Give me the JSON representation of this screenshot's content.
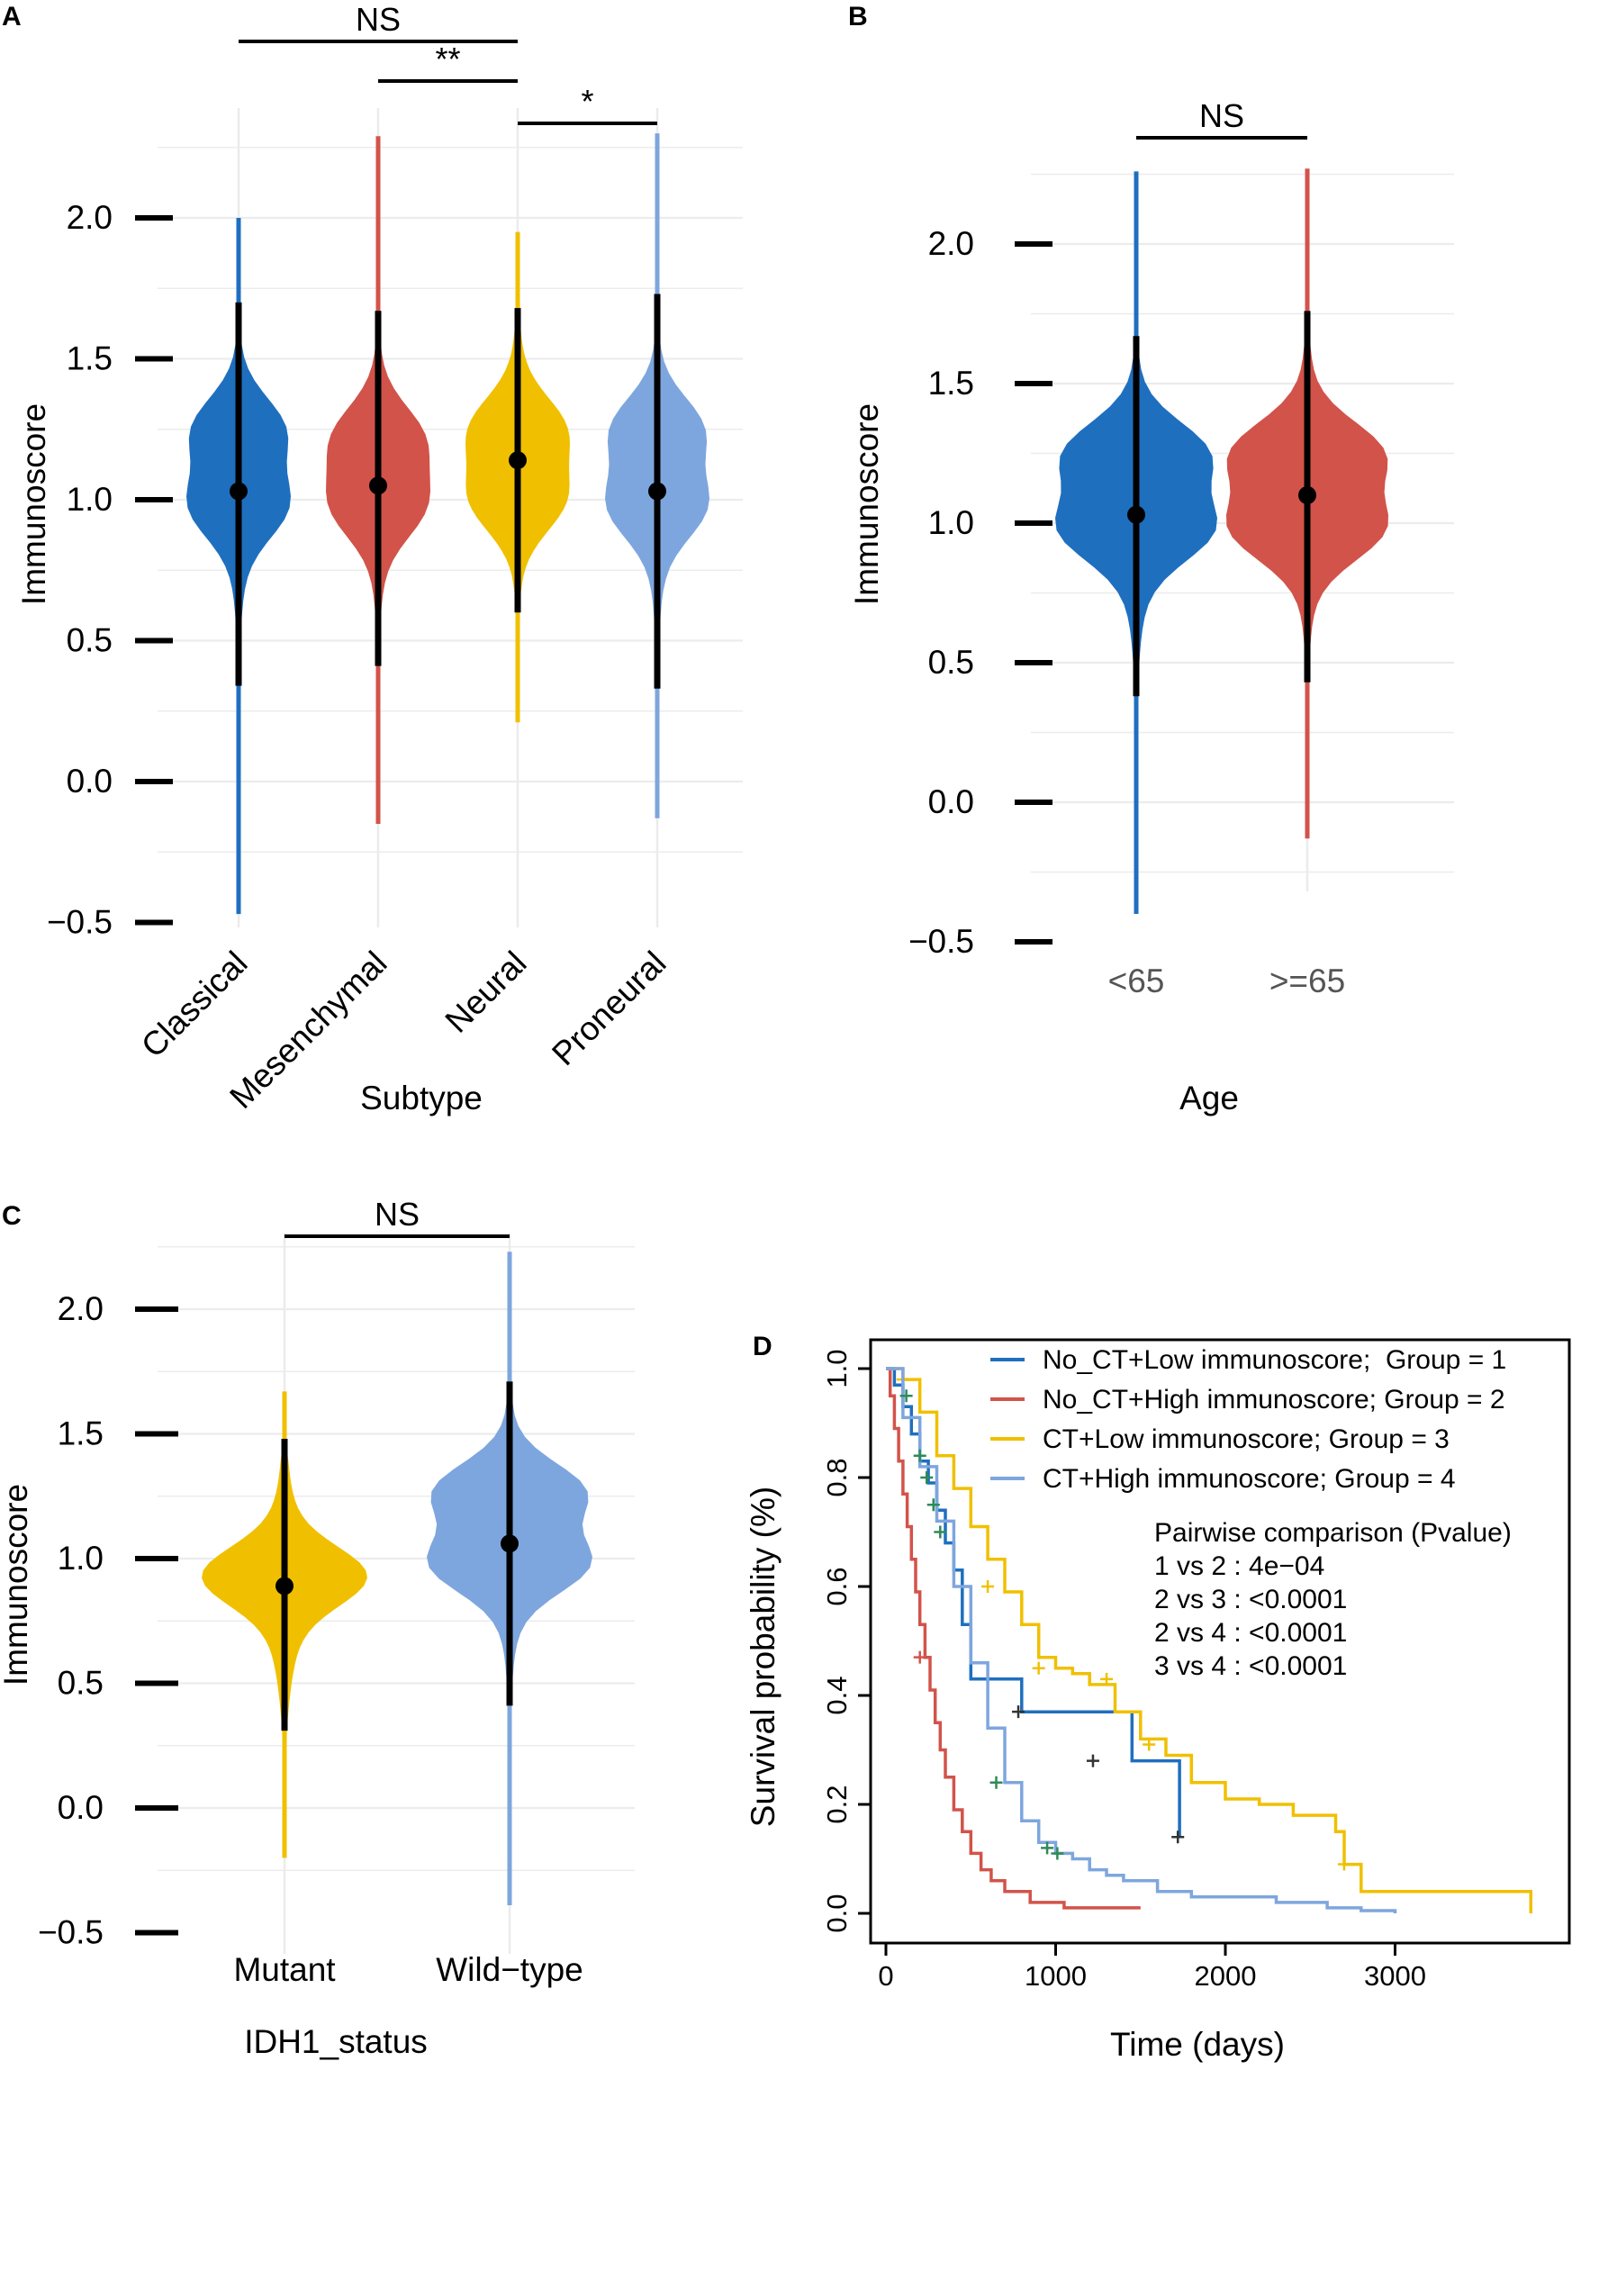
{
  "chart_data": [
    {
      "panel": "A",
      "type": "violin",
      "xlabel": "Subtype",
      "ylabel": "Immunoscore",
      "ylim": [
        -0.5,
        2.3
      ],
      "yticks": [
        "2.0",
        "1.5",
        "1.0",
        "0.5",
        "0.0",
        "−0.5"
      ],
      "groups": [
        {
          "name": "Classical",
          "color": "#1f6fbf",
          "median": 1.03,
          "low": 0.34,
          "high": 1.7,
          "min": -0.47,
          "max": 2.0,
          "modes": [
            1.25,
            0.98
          ]
        },
        {
          "name": "Mesenchymal",
          "color": "#d2534a",
          "median": 1.05,
          "low": 0.41,
          "high": 1.67,
          "min": -0.15,
          "max": 2.29,
          "modes": [
            1.22,
            0.98
          ]
        },
        {
          "name": "Neural",
          "color": "#f0c000",
          "median": 1.14,
          "low": 0.6,
          "high": 1.68,
          "min": 0.21,
          "max": 1.95,
          "modes": [
            1.25,
            1.0
          ]
        },
        {
          "name": "Proneural",
          "color": "#7ea6de",
          "median": 1.03,
          "low": 0.33,
          "high": 1.73,
          "min": -0.13,
          "max": 2.3,
          "modes": [
            1.25,
            0.98
          ]
        }
      ],
      "comparisons": [
        {
          "from": "Classical",
          "to": "Neural",
          "label": "NS"
        },
        {
          "from": "Mesenchymal",
          "to": "Neural",
          "label": "**"
        },
        {
          "from": "Neural",
          "to": "Proneural",
          "label": "*"
        }
      ]
    },
    {
      "panel": "B",
      "type": "violin",
      "xlabel": "Age",
      "ylabel": "Immunoscore",
      "ylim": [
        -0.5,
        2.3
      ],
      "yticks": [
        "2.0",
        "1.5",
        "1.0",
        "0.5",
        "0.0",
        "−0.5"
      ],
      "groups": [
        {
          "name": "<65",
          "color": "#1f6fbf",
          "median": 1.03,
          "low": 0.38,
          "high": 1.67,
          "min": -0.4,
          "max": 2.26,
          "modes": [
            1.25,
            0.98
          ]
        },
        {
          "name": ">=65",
          "color": "#d2534a",
          "median": 1.1,
          "low": 0.43,
          "high": 1.76,
          "min": -0.13,
          "max": 2.27,
          "modes": [
            1.25,
            0.98
          ]
        }
      ],
      "comparisons": [
        {
          "from": "<65",
          "to": ">=65",
          "label": "NS"
        }
      ]
    },
    {
      "panel": "C",
      "type": "violin",
      "xlabel": "IDH1_status",
      "ylabel": "Immunoscore",
      "ylim": [
        -0.5,
        2.3
      ],
      "yticks": [
        "2.0",
        "1.5",
        "1.0",
        "0.5",
        "0.0",
        "−0.5"
      ],
      "groups": [
        {
          "name": "Mutant",
          "color": "#f0c000",
          "median": 0.89,
          "low": 0.31,
          "high": 1.48,
          "min": -0.2,
          "max": 1.67,
          "modes": [
            0.93
          ]
        },
        {
          "name": "Wild−type",
          "color": "#7ea6de",
          "median": 1.06,
          "low": 0.41,
          "high": 1.71,
          "min": -0.39,
          "max": 2.23,
          "modes": [
            1.27,
            0.98
          ]
        }
      ],
      "comparisons": [
        {
          "from": "Mutant",
          "to": "Wild−type",
          "label": "NS"
        }
      ]
    },
    {
      "panel": "D",
      "type": "line",
      "subtype": "kaplan-meier",
      "xlabel": "Time (days)",
      "ylabel": "Survival probability (%)",
      "xlim": [
        0,
        3900
      ],
      "ylim": [
        0,
        1.05
      ],
      "xticks": [
        0,
        1000,
        2000,
        3000
      ],
      "yticks": [
        "0.0",
        "0.2",
        "0.4",
        "0.6",
        "0.8",
        "1.0"
      ],
      "legend": [
        "No_CT+Low immunoscore;  Group = 1",
        "No_CT+High immunoscore; Group = 2",
        "CT+Low immunoscore; Group = 3",
        "CT+High immunoscore; Group = 4"
      ],
      "annotation_title": "Pairwise comparison (Pvalue)",
      "annotations": [
        "1 vs 2 : 4e−04",
        "2 vs 3 : <0.0001",
        "2 vs 4 : <0.0001",
        "3 vs 4 : <0.0001"
      ],
      "series": [
        {
          "name": "Group 1",
          "color": "#1f6fbf",
          "x": [
            0,
            50,
            100,
            150,
            200,
            250,
            300,
            350,
            400,
            450,
            500,
            800,
            1450,
            1730
          ],
          "y": [
            1.0,
            0.97,
            0.93,
            0.88,
            0.83,
            0.79,
            0.74,
            0.68,
            0.63,
            0.53,
            0.43,
            0.37,
            0.28,
            0.14
          ],
          "censor_x": [
            780,
            1220,
            1720
          ],
          "censor_y": [
            0.37,
            0.28,
            0.14
          ]
        },
        {
          "name": "Group 2",
          "color": "#d2534a",
          "x": [
            0,
            25,
            50,
            75,
            100,
            125,
            150,
            175,
            200,
            230,
            260,
            290,
            320,
            350,
            400,
            450,
            500,
            560,
            620,
            700,
            850,
            1050,
            1500
          ],
          "y": [
            1.0,
            0.95,
            0.89,
            0.83,
            0.77,
            0.71,
            0.65,
            0.59,
            0.53,
            0.47,
            0.41,
            0.35,
            0.3,
            0.25,
            0.19,
            0.15,
            0.11,
            0.08,
            0.06,
            0.04,
            0.02,
            0.01,
            0.01
          ],
          "censor_x": [
            200
          ],
          "censor_y": [
            0.47
          ]
        },
        {
          "name": "Group 3",
          "color": "#f0c000",
          "x": [
            0,
            100,
            200,
            300,
            400,
            500,
            600,
            700,
            800,
            900,
            1000,
            1100,
            1200,
            1350,
            1500,
            1650,
            1800,
            2000,
            2200,
            2400,
            2650,
            2700,
            2800,
            3000,
            3800
          ],
          "y": [
            1.0,
            0.98,
            0.92,
            0.84,
            0.78,
            0.71,
            0.65,
            0.59,
            0.53,
            0.47,
            0.45,
            0.44,
            0.42,
            0.37,
            0.32,
            0.29,
            0.24,
            0.21,
            0.2,
            0.18,
            0.15,
            0.09,
            0.04,
            0.04,
            0.0
          ],
          "censor_x": [
            100,
            600,
            900,
            1300,
            1550,
            2700
          ],
          "censor_y": [
            0.98,
            0.6,
            0.45,
            0.43,
            0.31,
            0.09
          ]
        },
        {
          "name": "Group 4",
          "color": "#7ea6de",
          "x": [
            0,
            100,
            200,
            300,
            400,
            500,
            600,
            700,
            800,
            900,
            1000,
            1100,
            1200,
            1300,
            1400,
            1600,
            1800,
            2000,
            2300,
            2600,
            2800,
            3000
          ],
          "y": [
            1.0,
            0.91,
            0.82,
            0.72,
            0.6,
            0.46,
            0.34,
            0.24,
            0.17,
            0.13,
            0.11,
            0.1,
            0.08,
            0.07,
            0.06,
            0.04,
            0.03,
            0.03,
            0.02,
            0.01,
            0.005,
            0.0
          ],
          "censor_x": [
            120,
            200,
            240,
            280,
            320,
            650,
            950,
            1010
          ],
          "censor_y": [
            0.95,
            0.84,
            0.8,
            0.75,
            0.7,
            0.24,
            0.12,
            0.11
          ]
        }
      ]
    }
  ]
}
